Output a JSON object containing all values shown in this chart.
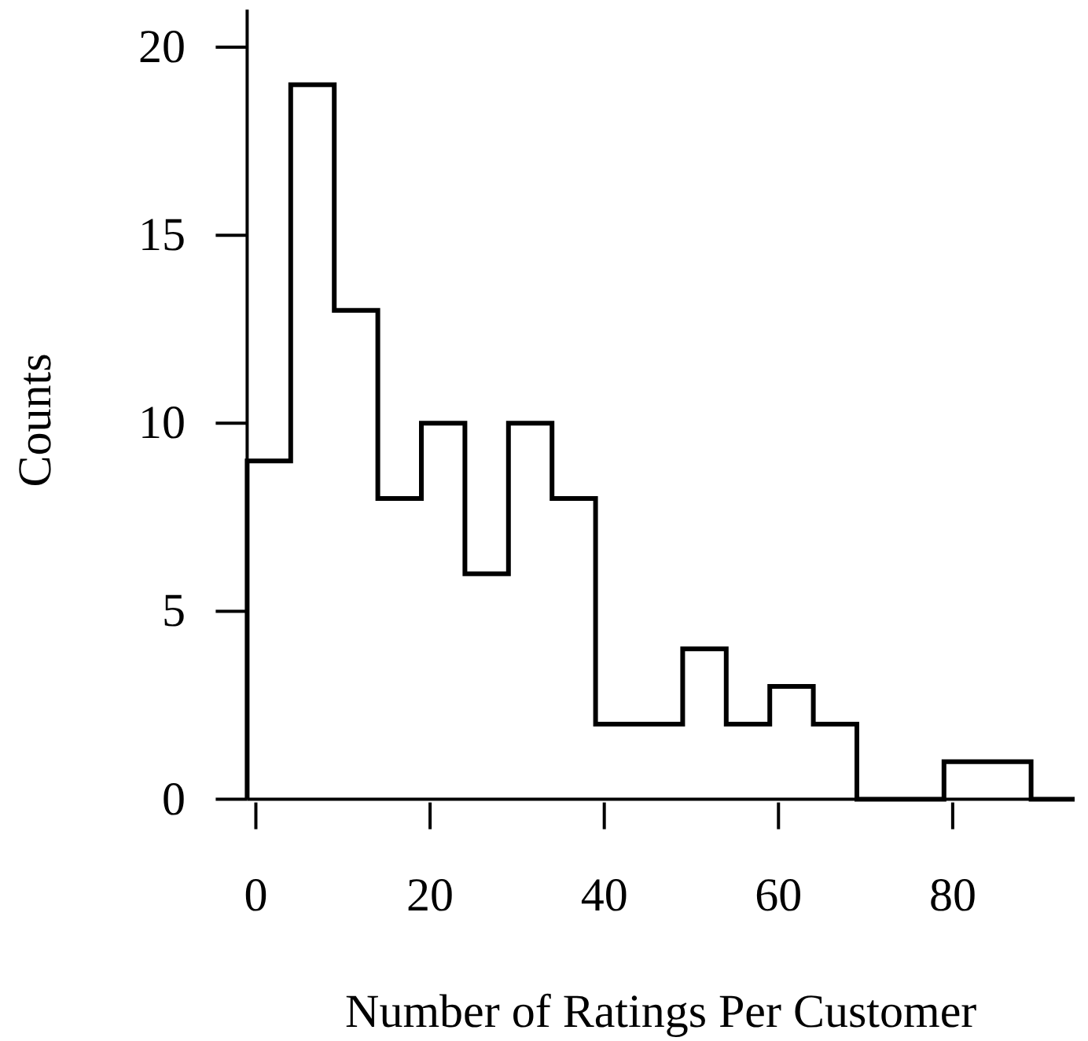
{
  "chart_data": {
    "type": "histogram",
    "xlabel": "Number of Ratings Per Customer",
    "ylabel": "Counts",
    "bins": [
      -1,
      4,
      9,
      14,
      19,
      24,
      29,
      34,
      39,
      44,
      49,
      54,
      59,
      64,
      69,
      74,
      79,
      84,
      89,
      94
    ],
    "values": [
      9,
      19,
      13,
      8,
      10,
      6,
      10,
      8,
      2,
      2,
      4,
      2,
      3,
      2,
      0,
      0,
      1,
      1,
      0
    ],
    "color": "#000000",
    "xlim": [
      -1,
      94
    ],
    "ylim": [
      0,
      21
    ],
    "xticks": [
      0,
      20,
      40,
      60,
      80
    ],
    "yticks": [
      0,
      5,
      10,
      15,
      20
    ]
  }
}
